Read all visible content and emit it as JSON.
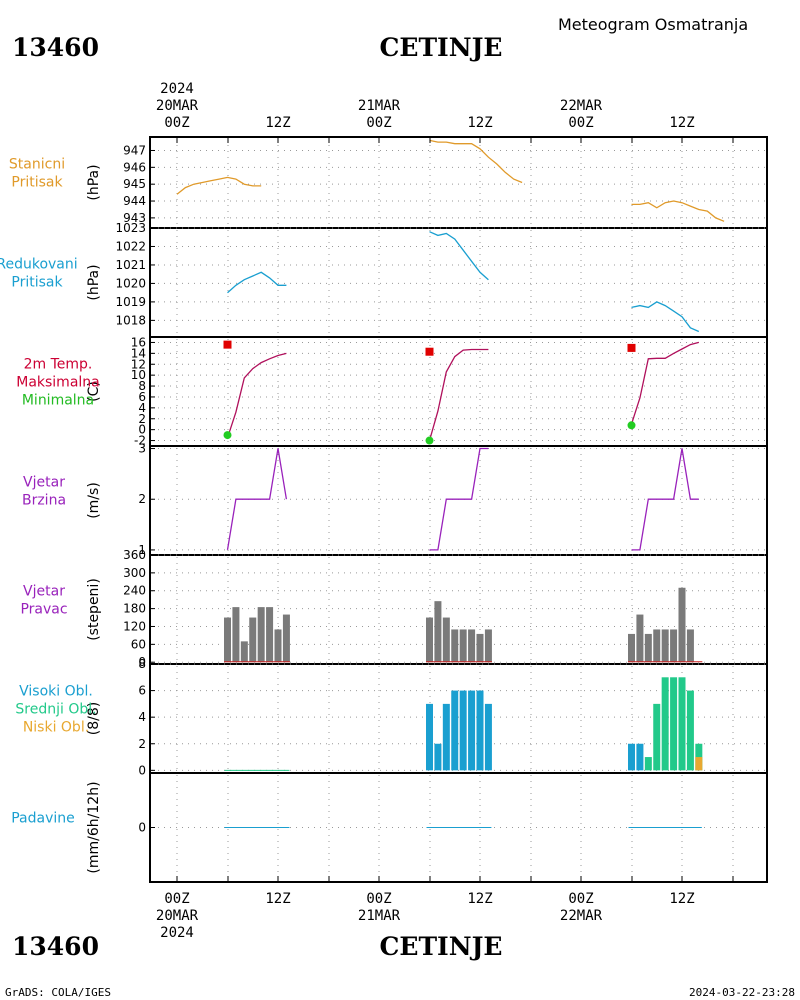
{
  "header": {
    "station_id": "13460",
    "station_name": "CETINJE",
    "product": "Meteogram Osmatranja"
  },
  "top_axis": [
    {
      "year": "2024",
      "date": "20MAR",
      "hour": "00Z"
    },
    {
      "date": "",
      "hour": "12Z"
    },
    {
      "date": "21MAR",
      "hour": "00Z"
    },
    {
      "date": "",
      "hour": "12Z"
    },
    {
      "date": "22MAR",
      "hour": "00Z"
    },
    {
      "date": "",
      "hour": "12Z"
    }
  ],
  "bottom_axis": [
    {
      "hour": "00Z",
      "date": "20MAR",
      "year": "2024"
    },
    {
      "hour": "12Z",
      "date": ""
    },
    {
      "hour": "00Z",
      "date": "21MAR"
    },
    {
      "hour": "12Z",
      "date": ""
    },
    {
      "hour": "00Z",
      "date": "22MAR"
    },
    {
      "hour": "12Z",
      "date": ""
    }
  ],
  "footer": {
    "left": "GrADS: COLA/IGES",
    "right": "2024-03-22-23:28"
  },
  "colors": {
    "pressure": "#e09a2a",
    "reduced": "#1a9fd0",
    "tmax_label": "#cc0033",
    "tmin_label": "#22bb22",
    "temp_line": "#b0105c",
    "wind": "#9922bb",
    "dir_bar": "#7a7a7a",
    "cloud_high": "#1a9fd0",
    "cloud_mid": "#22c98a",
    "cloud_low": "#e8a830",
    "precip_label": "#1a9fd0"
  },
  "chart_data": [
    {
      "type": "line",
      "panel": "pressure",
      "label_lines": [
        "Stanicni",
        "Pritisak"
      ],
      "ylabel": "(hPa)",
      "yticks": [
        943,
        944,
        945,
        946,
        947
      ],
      "ylim": [
        942.4,
        947.8
      ],
      "grid": true,
      "series": [
        {
          "x_hours": [
            0,
            1,
            2,
            3,
            4,
            5,
            6,
            7,
            8,
            9,
            10,
            11,
            12,
            13
          ],
          "values": [
            944.4,
            944.8,
            945.0,
            945.1,
            945.2,
            945.3,
            945.4,
            945.3,
            945.0,
            944.9,
            944.9,
            null,
            null,
            null
          ]
        },
        {
          "x_hours": [
            30,
            31,
            32,
            33,
            34,
            35,
            36,
            37,
            38,
            39,
            40,
            41
          ],
          "values": [
            947.6,
            947.5,
            947.5,
            947.4,
            947.4,
            947.4,
            947.1,
            946.6,
            946.2,
            945.7,
            945.3,
            945.1
          ]
        },
        {
          "x_hours": [
            54,
            55,
            56,
            57,
            58,
            59,
            60,
            61,
            62,
            63,
            64,
            65
          ],
          "values": [
            943.8,
            943.8,
            943.9,
            943.6,
            943.9,
            944.0,
            943.9,
            943.7,
            943.5,
            943.4,
            943.0,
            942.8
          ]
        }
      ]
    },
    {
      "type": "line",
      "panel": "reduced",
      "label_lines": [
        "Redukovani",
        "Pritisak"
      ],
      "ylabel": "(hPa)",
      "yticks": [
        1018,
        1019,
        1020,
        1021,
        1022,
        1023
      ],
      "ylim": [
        1017.1,
        1023.0
      ],
      "grid": true,
      "series": [
        {
          "x_hours": [
            6,
            7,
            8,
            9,
            10,
            11,
            12,
            13
          ],
          "values": [
            1019.5,
            1019.9,
            1020.2,
            1020.4,
            1020.6,
            1020.3,
            1019.9,
            1019.9
          ]
        },
        {
          "x_hours": [
            30,
            31,
            32,
            33,
            34,
            35,
            36,
            37
          ],
          "values": [
            1022.8,
            1022.6,
            1022.7,
            1022.4,
            1021.8,
            1021.2,
            1020.6,
            1020.2
          ]
        },
        {
          "x_hours": [
            54,
            55,
            56,
            57,
            58,
            59,
            60,
            61,
            62,
            63,
            64,
            65
          ],
          "values": [
            1018.7,
            1018.8,
            1018.7,
            1019.0,
            1018.8,
            1018.5,
            1018.2,
            1017.6,
            1017.4,
            null,
            null,
            null
          ]
        }
      ]
    },
    {
      "type": "line",
      "panel": "temperature",
      "label_lines": [
        "2m Temp.",
        "Maksimalna",
        "Minimalna"
      ],
      "ylabel": "(C)",
      "yticks": [
        -2,
        0,
        2,
        4,
        6,
        8,
        10,
        12,
        14,
        16
      ],
      "ylim": [
        -3.0,
        17.0
      ],
      "grid": true,
      "series": [
        {
          "x_hours": [
            6,
            7,
            8,
            9,
            10,
            11,
            12,
            13
          ],
          "values": [
            -1.5,
            3.2,
            9.5,
            11.2,
            12.3,
            13.0,
            13.6,
            14.0
          ]
        },
        {
          "x_hours": [
            30,
            31,
            32,
            33,
            34,
            35,
            36,
            37
          ],
          "values": [
            -2.0,
            3.4,
            10.6,
            13.4,
            14.6,
            14.7,
            14.7,
            14.7
          ]
        },
        {
          "x_hours": [
            54,
            55,
            56,
            57,
            58,
            59,
            60,
            61,
            62
          ],
          "values": [
            1.0,
            5.8,
            13.0,
            13.1,
            13.1,
            14.0,
            14.8,
            15.6,
            16.0
          ]
        }
      ],
      "max_points": [
        {
          "x_hours": 6,
          "value": 15.6
        },
        {
          "x_hours": 30,
          "value": 14.3
        },
        {
          "x_hours": 54,
          "value": 15.0
        }
      ],
      "min_points": [
        {
          "x_hours": 6,
          "value": -1.0
        },
        {
          "x_hours": 30,
          "value": -2.0
        },
        {
          "x_hours": 54,
          "value": 0.8
        }
      ]
    },
    {
      "type": "line",
      "panel": "wind_speed",
      "label_lines": [
        "Vjetar",
        "Brzina"
      ],
      "ylabel": "(m/s)",
      "yticks": [
        1,
        2,
        3
      ],
      "ylim": [
        0.9,
        3.05
      ],
      "grid": true,
      "series": [
        {
          "x_hours": [
            6,
            7,
            8,
            9,
            10,
            11,
            12,
            13
          ],
          "values": [
            1,
            2,
            2,
            2,
            2,
            2,
            3,
            2
          ]
        },
        {
          "x_hours": [
            30,
            31,
            32,
            33,
            34,
            35,
            36,
            37
          ],
          "values": [
            1,
            1,
            2,
            2,
            2,
            2,
            3,
            3
          ]
        },
        {
          "x_hours": [
            54,
            55,
            56,
            57,
            58,
            59,
            60,
            61,
            62
          ],
          "values": [
            1,
            1,
            2,
            2,
            2,
            2,
            3,
            2,
            2
          ]
        }
      ]
    },
    {
      "type": "bar",
      "panel": "wind_direction",
      "label_lines": [
        "Vjetar",
        "Pravac"
      ],
      "ylabel": "(stepeni)",
      "yticks": [
        0,
        60,
        120,
        180,
        240,
        300,
        360
      ],
      "ylim": [
        -6,
        360
      ],
      "grid": true,
      "series": [
        {
          "x_hours": [
            6,
            7,
            8,
            9,
            10,
            11,
            12,
            13
          ],
          "values": [
            150,
            185,
            70,
            150,
            185,
            185,
            110,
            160
          ]
        },
        {
          "x_hours": [
            30,
            31,
            32,
            33,
            34,
            35,
            36,
            37
          ],
          "values": [
            150,
            205,
            150,
            110,
            110,
            110,
            95,
            110
          ]
        },
        {
          "x_hours": [
            54,
            55,
            56,
            57,
            58,
            59,
            60,
            61,
            62
          ],
          "values": [
            95,
            160,
            95,
            110,
            110,
            110,
            250,
            110,
            null
          ]
        }
      ]
    },
    {
      "type": "bar",
      "panel": "clouds",
      "label_lines": [
        "Visoki Obl.",
        "Srednji Obl.",
        "Niski Obl."
      ],
      "ylabel": "(8/8)",
      "yticks": [
        0,
        2,
        4,
        6,
        8
      ],
      "ylim": [
        -0.2,
        8.0
      ],
      "grid": true,
      "series": [
        {
          "name": "Visoki Obl.",
          "x_hours": [
            30,
            31,
            32,
            33,
            34,
            35,
            36,
            37,
            54,
            55
          ],
          "values": [
            5,
            2,
            5,
            6,
            6,
            6,
            6,
            5,
            2,
            2
          ]
        },
        {
          "name": "Srednji Obl.",
          "x_hours": [
            56,
            57,
            58,
            59,
            60,
            61,
            62
          ],
          "values": [
            1,
            5,
            7,
            7,
            7,
            6,
            2
          ]
        },
        {
          "name": "Niski Obl.",
          "x_hours": [
            62
          ],
          "values": [
            1
          ]
        }
      ]
    },
    {
      "type": "bar",
      "panel": "precipitation",
      "label_lines": [
        "Padavine"
      ],
      "ylabel": "(mm/6h/12h)",
      "yticks": [
        0
      ],
      "ylim": [
        -1,
        1
      ],
      "grid": true,
      "series": [
        {
          "x_hours": [
            6,
            13,
            30,
            37,
            54,
            62
          ],
          "values": [
            0,
            0,
            0,
            0,
            0,
            0
          ]
        }
      ]
    }
  ]
}
